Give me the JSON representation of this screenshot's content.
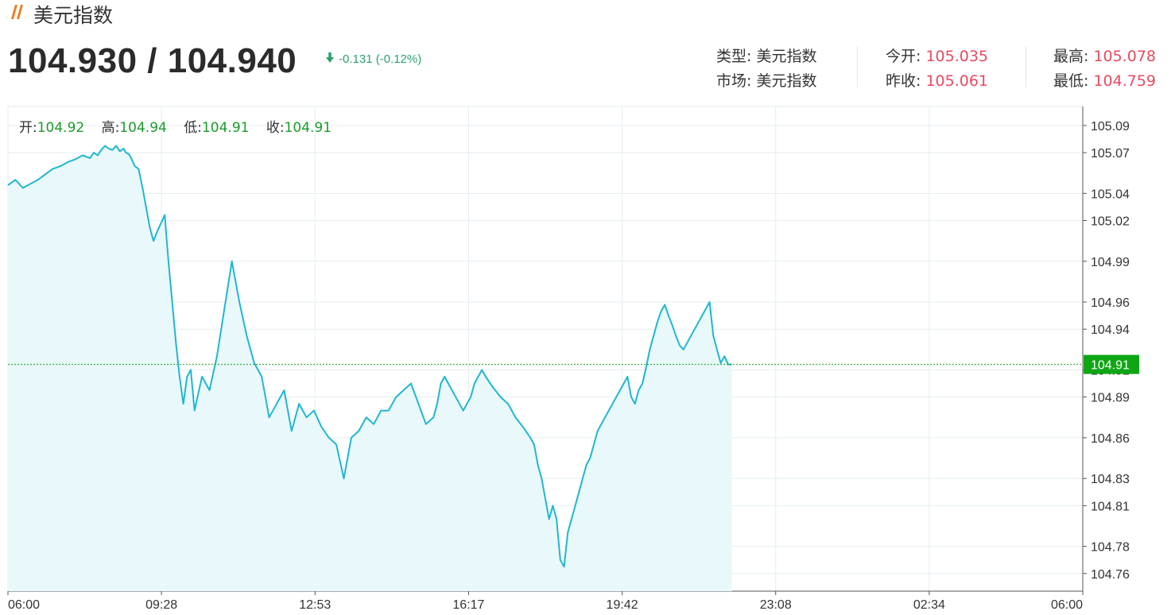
{
  "header": {
    "title": "美元指数",
    "price": "104.930 / 104.940",
    "change": "-0.131 (-0.12%)",
    "change_direction": "down"
  },
  "info": {
    "type_label": "类型:",
    "type_value": "美元指数",
    "market_label": "市场:",
    "market_value": "美元指数",
    "open_label": "今开:",
    "open_value": "105.035",
    "prevclose_label": "昨收:",
    "prevclose_value": "105.061",
    "high_label": "最高:",
    "high_value": "105.078",
    "low_label": "最低:",
    "low_value": "104.759"
  },
  "ohlc": {
    "open_label": "开:",
    "open": "104.92",
    "high_label": "高:",
    "high": "104.94",
    "low_label": "低:",
    "low": "104.91",
    "close_label": "收:",
    "close": "104.91"
  },
  "colors": {
    "line": "#1fb7d0",
    "area": "#e9f8fb",
    "last_price": "#0ea615",
    "up_red": "#e84a5f",
    "down_green": "#2aa36b",
    "grid": "#e3eef2"
  },
  "chart_data": {
    "type": "line",
    "title": "",
    "xlabel": "",
    "ylabel": "",
    "x_ticks": [
      "06:00",
      "09:28",
      "12:53",
      "16:17",
      "19:42",
      "23:08",
      "02:34",
      "06:00"
    ],
    "y_ticks": [
      "105.09",
      "105.07",
      "105.04",
      "105.02",
      "104.99",
      "104.96",
      "104.94",
      "104.91",
      "104.89",
      "104.86",
      "104.83",
      "104.81",
      "104.78",
      "104.76"
    ],
    "ylim": [
      104.747,
      105.104
    ],
    "x_range_minutes": [
      0,
      1440
    ],
    "last_price_label": "104.91",
    "last_price": 104.914,
    "grid": true,
    "series": [
      {
        "x": [
          0,
          10,
          20,
          30,
          40,
          50,
          60,
          70,
          80,
          90,
          100,
          110,
          115,
          120,
          125,
          130,
          135,
          140,
          145,
          150,
          155,
          158,
          162,
          165,
          170,
          175,
          180,
          185,
          190,
          195,
          200,
          205,
          210,
          215,
          220,
          225,
          230,
          235,
          240,
          245,
          250,
          260,
          270,
          280,
          290,
          300,
          310,
          320,
          330,
          340,
          350,
          360,
          370,
          380,
          390,
          400,
          410,
          420,
          430,
          440,
          450,
          460,
          470,
          480,
          490,
          500,
          510,
          520,
          530,
          540,
          550,
          560,
          570,
          575,
          580,
          585,
          590,
          595,
          600,
          605,
          610,
          615,
          620,
          625,
          630,
          635,
          640,
          650,
          660,
          670,
          680,
          690,
          700,
          705,
          710,
          715,
          720,
          725,
          730,
          735,
          740,
          745,
          750,
          755,
          760,
          765,
          770,
          775,
          780,
          785,
          790,
          795,
          800,
          805,
          810,
          815,
          820,
          825,
          830,
          835,
          840,
          845,
          850,
          855,
          860,
          865,
          870,
          875,
          880,
          885,
          890,
          895,
          900,
          905,
          910,
          915,
          920,
          925,
          930,
          935,
          940,
          945,
          950,
          955,
          960,
          965,
          970
        ],
        "y": [
          105.046,
          105.05,
          105.044,
          105.047,
          105.05,
          105.054,
          105.058,
          105.06,
          105.063,
          105.065,
          105.068,
          105.066,
          105.07,
          105.068,
          105.072,
          105.075,
          105.073,
          105.072,
          105.075,
          105.071,
          105.073,
          105.07,
          105.069,
          105.066,
          105.06,
          105.058,
          105.045,
          105.03,
          105.015,
          105.005,
          105.012,
          105.018,
          105.024,
          104.99,
          104.96,
          104.93,
          104.905,
          104.885,
          104.905,
          104.91,
          104.88,
          104.905,
          104.895,
          104.92,
          104.955,
          104.99,
          104.96,
          104.935,
          104.915,
          104.905,
          104.875,
          104.885,
          104.895,
          104.865,
          104.885,
          104.875,
          104.88,
          104.868,
          104.86,
          104.855,
          104.83,
          104.86,
          104.865,
          104.875,
          104.87,
          104.88,
          104.88,
          104.89,
          104.895,
          104.9,
          104.885,
          104.87,
          104.875,
          104.885,
          104.9,
          104.905,
          104.9,
          104.895,
          104.89,
          104.885,
          104.88,
          104.885,
          104.89,
          104.9,
          104.905,
          104.91,
          104.905,
          104.897,
          104.89,
          104.885,
          104.875,
          104.868,
          104.86,
          104.855,
          104.84,
          104.83,
          104.815,
          104.8,
          104.81,
          104.8,
          104.77,
          104.765,
          104.79,
          104.8,
          104.81,
          104.82,
          104.83,
          104.84,
          104.845,
          104.855,
          104.865,
          104.87,
          104.875,
          104.88,
          104.885,
          104.89,
          104.895,
          104.9,
          104.905,
          104.89,
          104.885,
          104.895,
          104.9,
          104.912,
          104.925,
          104.935,
          104.945,
          104.953,
          104.958,
          104.95,
          104.943,
          104.935,
          104.928,
          104.925,
          104.93,
          104.935,
          104.94,
          104.945,
          104.95,
          104.955,
          104.96,
          104.935,
          104.925,
          104.915,
          104.92,
          104.914,
          104.914
        ]
      }
    ]
  }
}
